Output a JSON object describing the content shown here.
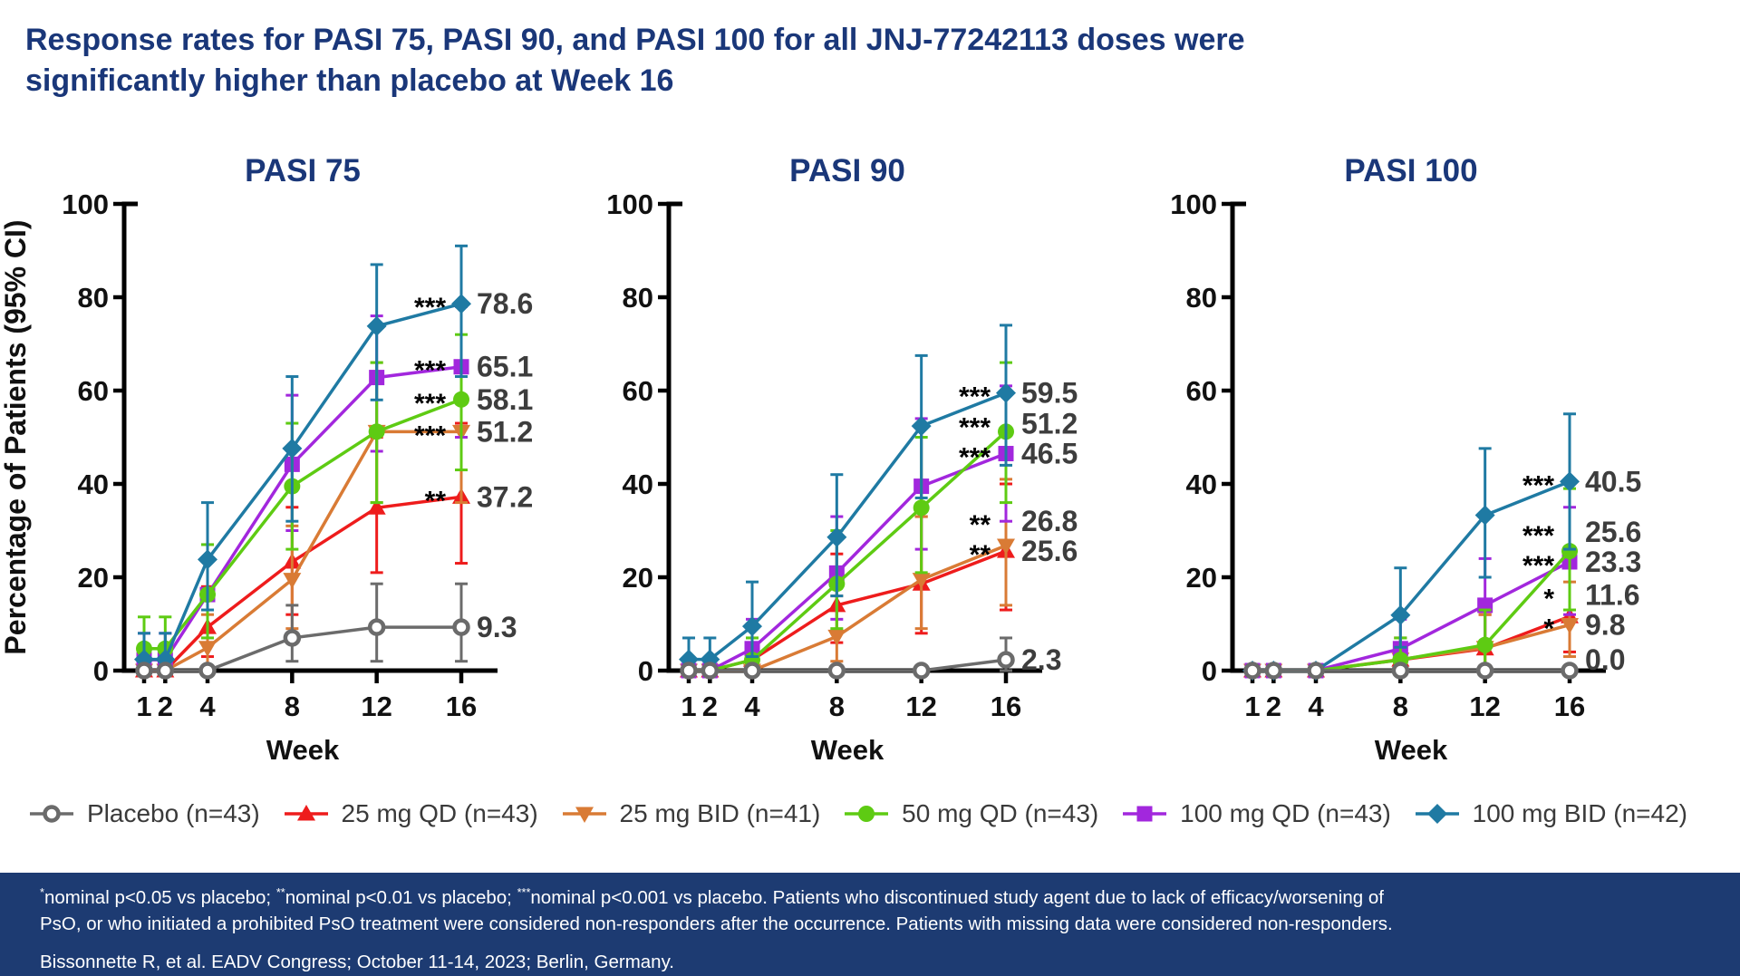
{
  "title": "Response rates for PASI 75, PASI 90, and PASI 100 for all JNJ-77242113 doses were significantly higher than placebo at Week 16",
  "colors": {
    "title_navy": "#1a3779",
    "footer_bg": "#1d3b72",
    "axis_black": "#000000",
    "value_label_gray": "#3d3d3d"
  },
  "legend": {
    "items": [
      {
        "label": "Placebo (n=43)",
        "color": "#6b6b6b",
        "marker": "circle-open"
      },
      {
        "label": "25 mg QD (n=43)",
        "color": "#ee1c1c",
        "marker": "triangle-up"
      },
      {
        "label": "25 mg BID (n=41)",
        "color": "#d97b35",
        "marker": "triangle-down"
      },
      {
        "label": "50 mg QD (n=43)",
        "color": "#5ecb13",
        "marker": "circle"
      },
      {
        "label": "100 mg QD (n=43)",
        "color": "#a227dd",
        "marker": "square"
      },
      {
        "label": "100 mg BID (n=42)",
        "color": "#1f7aa3",
        "marker": "diamond"
      }
    ]
  },
  "chart_data": [
    {
      "type": "line",
      "title": "PASI 75",
      "xlabel": "Week",
      "ylabel": "Percentage of Patients (95% CI)",
      "x": [
        1,
        2,
        4,
        8,
        12,
        16
      ],
      "ylim": [
        0,
        100
      ],
      "yticks": [
        0,
        20,
        40,
        60,
        80,
        100
      ],
      "series": [
        {
          "name": "Placebo (n=43)",
          "color": "#6b6b6b",
          "marker": "circle-open",
          "values": [
            0,
            0,
            0,
            7.0,
            9.3,
            9.3
          ],
          "ci_low": [
            0,
            0,
            0,
            2,
            2,
            2
          ],
          "ci_high": [
            0,
            0,
            0,
            14,
            18.6,
            18.6
          ],
          "end_label": "9.3",
          "stars": ""
        },
        {
          "name": "25 mg QD (n=43)",
          "color": "#ee1c1c",
          "marker": "triangle-up",
          "values": [
            0,
            0,
            9.3,
            23.3,
            34.9,
            37.2
          ],
          "ci_low": [
            0,
            0,
            3,
            12,
            21,
            23
          ],
          "ci_high": [
            2,
            2,
            18,
            35,
            50,
            53
          ],
          "end_label": "37.2",
          "stars": "**"
        },
        {
          "name": "25 mg BID (n=41)",
          "color": "#d97b35",
          "marker": "triangle-down",
          "values": [
            0,
            0,
            4.9,
            19.5,
            51.2,
            51.2
          ],
          "ci_low": [
            0,
            0,
            1,
            9,
            36,
            36
          ],
          "ci_high": [
            2,
            2,
            12,
            31,
            66,
            66
          ],
          "end_label": "51.2",
          "stars": "***"
        },
        {
          "name": "50 mg QD (n=43)",
          "color": "#5ecb13",
          "marker": "circle",
          "values": [
            4.7,
            4.7,
            16.3,
            39.5,
            51.2,
            58.1
          ],
          "ci_low": [
            0.5,
            0.5,
            7,
            26,
            36,
            43
          ],
          "ci_high": [
            11.5,
            11.5,
            27,
            53,
            66,
            72
          ],
          "end_label": "58.1",
          "stars": "***"
        },
        {
          "name": "100 mg QD (n=43)",
          "color": "#a227dd",
          "marker": "square",
          "values": [
            2.3,
            2.3,
            16.3,
            44.2,
            62.8,
            65.1
          ],
          "ci_low": [
            0,
            0,
            7,
            30,
            47,
            50
          ],
          "ci_high": [
            8,
            8,
            27,
            59,
            76,
            78
          ],
          "end_label": "65.1",
          "stars": "***"
        },
        {
          "name": "100 mg BID (n=42)",
          "color": "#1f7aa3",
          "marker": "diamond",
          "values": [
            2.4,
            2.4,
            23.8,
            47.6,
            73.8,
            78.6
          ],
          "ci_low": [
            0,
            0,
            13,
            32,
            58,
            63
          ],
          "ci_high": [
            8,
            8,
            36,
            63,
            87,
            91
          ],
          "end_label": "78.6",
          "stars": "***"
        }
      ]
    },
    {
      "type": "line",
      "title": "PASI 90",
      "xlabel": "Week",
      "x": [
        1,
        2,
        4,
        8,
        12,
        16
      ],
      "ylim": [
        0,
        100
      ],
      "yticks": [
        0,
        20,
        40,
        60,
        80,
        100
      ],
      "series": [
        {
          "name": "Placebo (n=43)",
          "color": "#6b6b6b",
          "marker": "circle-open",
          "values": [
            0,
            0,
            0,
            0,
            0,
            2.3
          ],
          "ci_low": [
            0,
            0,
            0,
            0,
            0,
            0
          ],
          "ci_high": [
            0,
            0,
            0,
            0,
            0,
            7
          ],
          "end_label": "2.3",
          "stars": ""
        },
        {
          "name": "25 mg QD (n=43)",
          "color": "#ee1c1c",
          "marker": "triangle-up",
          "values": [
            0,
            0,
            2.3,
            14.0,
            18.6,
            25.6
          ],
          "ci_low": [
            0,
            0,
            0,
            6,
            8,
            13
          ],
          "ci_high": [
            0,
            0,
            7,
            25,
            33,
            40
          ],
          "end_label": "25.6",
          "stars": "**"
        },
        {
          "name": "25 mg BID (n=41)",
          "color": "#d97b35",
          "marker": "triangle-down",
          "values": [
            0,
            0,
            0,
            7.3,
            19.5,
            26.8
          ],
          "ci_low": [
            0,
            0,
            0,
            2,
            9,
            14
          ],
          "ci_high": [
            0,
            0,
            0,
            16,
            33,
            41
          ],
          "end_label": "26.8",
          "stars": "**"
        },
        {
          "name": "50 mg QD (n=43)",
          "color": "#5ecb13",
          "marker": "circle",
          "values": [
            0,
            0,
            2.3,
            18.6,
            34.9,
            51.2
          ],
          "ci_low": [
            0,
            0,
            0,
            9,
            21,
            36
          ],
          "ci_high": [
            0,
            0,
            7,
            30,
            50,
            66
          ],
          "end_label": "51.2",
          "stars": "***"
        },
        {
          "name": "100 mg QD (n=43)",
          "color": "#a227dd",
          "marker": "square",
          "values": [
            0,
            0,
            4.7,
            20.9,
            39.5,
            46.5
          ],
          "ci_low": [
            0,
            0,
            1,
            11,
            26,
            32
          ],
          "ci_high": [
            0,
            0,
            11,
            33,
            54,
            61
          ],
          "end_label": "46.5",
          "stars": "***"
        },
        {
          "name": "100 mg BID (n=42)",
          "color": "#1f7aa3",
          "marker": "diamond",
          "values": [
            2.4,
            2.4,
            9.5,
            28.6,
            52.4,
            59.5
          ],
          "ci_low": [
            0,
            0,
            3,
            16,
            37,
            44
          ],
          "ci_high": [
            7,
            7,
            19,
            42,
            67.5,
            74
          ],
          "end_label": "59.5",
          "stars": "***"
        }
      ]
    },
    {
      "type": "line",
      "title": "PASI 100",
      "xlabel": "Week",
      "x": [
        1,
        2,
        4,
        8,
        12,
        16
      ],
      "ylim": [
        0,
        100
      ],
      "yticks": [
        0,
        20,
        40,
        60,
        80,
        100
      ],
      "series": [
        {
          "name": "Placebo (n=43)",
          "color": "#6b6b6b",
          "marker": "circle-open",
          "values": [
            0,
            0,
            0,
            0,
            0,
            0
          ],
          "ci_low": [
            0,
            0,
            0,
            0,
            0,
            0
          ],
          "ci_high": [
            0,
            0,
            0,
            0,
            0,
            0
          ],
          "end_label": "0.0",
          "stars": ""
        },
        {
          "name": "25 mg QD (n=43)",
          "color": "#ee1c1c",
          "marker": "triangle-up",
          "values": [
            0,
            0,
            0,
            2.3,
            4.7,
            11.6
          ],
          "ci_low": [
            0,
            0,
            0,
            0,
            1,
            4
          ],
          "ci_high": [
            0,
            0,
            0,
            7,
            12,
            22
          ],
          "end_label": "11.6",
          "stars": "*"
        },
        {
          "name": "25 mg BID (n=41)",
          "color": "#d97b35",
          "marker": "triangle-down",
          "values": [
            0,
            0,
            0,
            2.4,
            4.9,
            9.8
          ],
          "ci_low": [
            0,
            0,
            0,
            0,
            1,
            3
          ],
          "ci_high": [
            0,
            0,
            0,
            7,
            12,
            19
          ],
          "end_label": "9.8",
          "stars": "*"
        },
        {
          "name": "50 mg QD (n=43)",
          "color": "#5ecb13",
          "marker": "circle",
          "values": [
            0,
            0,
            0,
            2.3,
            5.5,
            25.6
          ],
          "ci_low": [
            0,
            0,
            0,
            0,
            1,
            13
          ],
          "ci_high": [
            0,
            0,
            0,
            7,
            13,
            39
          ],
          "end_label": "25.6",
          "stars": "***"
        },
        {
          "name": "100 mg QD (n=43)",
          "color": "#a227dd",
          "marker": "square",
          "values": [
            0,
            0,
            0,
            4.7,
            14.0,
            23.3
          ],
          "ci_low": [
            0,
            0,
            0,
            1,
            6,
            12
          ],
          "ci_high": [
            0,
            0,
            0,
            11,
            24,
            35
          ],
          "end_label": "23.3",
          "stars": "***"
        },
        {
          "name": "100 mg BID (n=42)",
          "color": "#1f7aa3",
          "marker": "diamond",
          "values": [
            0,
            0,
            0,
            11.9,
            33.3,
            40.5
          ],
          "ci_low": [
            0,
            0,
            0,
            5,
            20,
            26
          ],
          "ci_high": [
            0,
            0,
            0,
            22,
            47.6,
            55
          ],
          "end_label": "40.5",
          "stars": "***"
        }
      ]
    }
  ],
  "footer": {
    "footnote_segments": [
      {
        "sup": "*",
        "text": "nominal p<0.05 vs placebo; "
      },
      {
        "sup": "**",
        "text": "nominal p<0.01 vs placebo; "
      },
      {
        "sup": "***",
        "text": "nominal p<0.001 vs placebo. Patients who discontinued study agent due to lack of efficacy/worsening of PsO, or who initiated a prohibited PsO treatment were considered non-responders after the occurrence. Patients with missing data were considered non-responders."
      }
    ],
    "citation": "Bissonnette R, et al. EADV Congress; October 11-14, 2023; Berlin, Germany."
  }
}
